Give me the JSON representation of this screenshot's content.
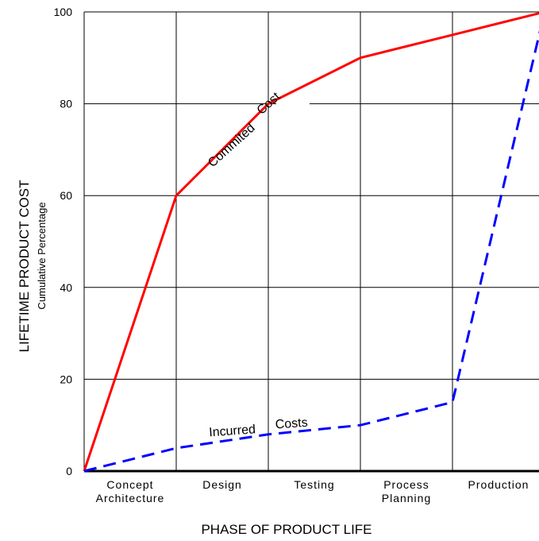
{
  "chart_data": {
    "type": "line",
    "xlabel": "PHASE OF PRODUCT LIFE",
    "ylabel": "LIFETIME PRODUCT COST",
    "ylabel_sub": "Cumulative Percentage",
    "categories": [
      [
        "Concept",
        "Architecture"
      ],
      [
        "Design"
      ],
      [
        "Testing"
      ],
      [
        "Process",
        "Planning"
      ],
      [
        "Production"
      ]
    ],
    "ylim": [
      0,
      100
    ],
    "yticks": [
      0,
      20,
      40,
      60,
      80,
      100
    ],
    "x_range": [
      0,
      5
    ],
    "grid": true,
    "series": [
      {
        "name": "Committed Cost",
        "color": "#ff0000",
        "style": "solid",
        "x": [
          0,
          1,
          2,
          3,
          4,
          5
        ],
        "y": [
          0,
          60,
          80,
          90,
          95,
          100
        ]
      },
      {
        "name": "Incurred Costs",
        "color": "#0000ff",
        "style": "dashed",
        "x": [
          0,
          1,
          2,
          3,
          4,
          5
        ],
        "y": [
          0,
          5,
          8,
          10,
          15,
          100
        ]
      }
    ],
    "annotations": [
      {
        "text_parts": [
          "Commited",
          "Cost"
        ],
        "series": "Committed Cost"
      },
      {
        "text_parts": [
          "Incurred",
          "Costs"
        ],
        "series": "Incurred Costs"
      }
    ]
  }
}
